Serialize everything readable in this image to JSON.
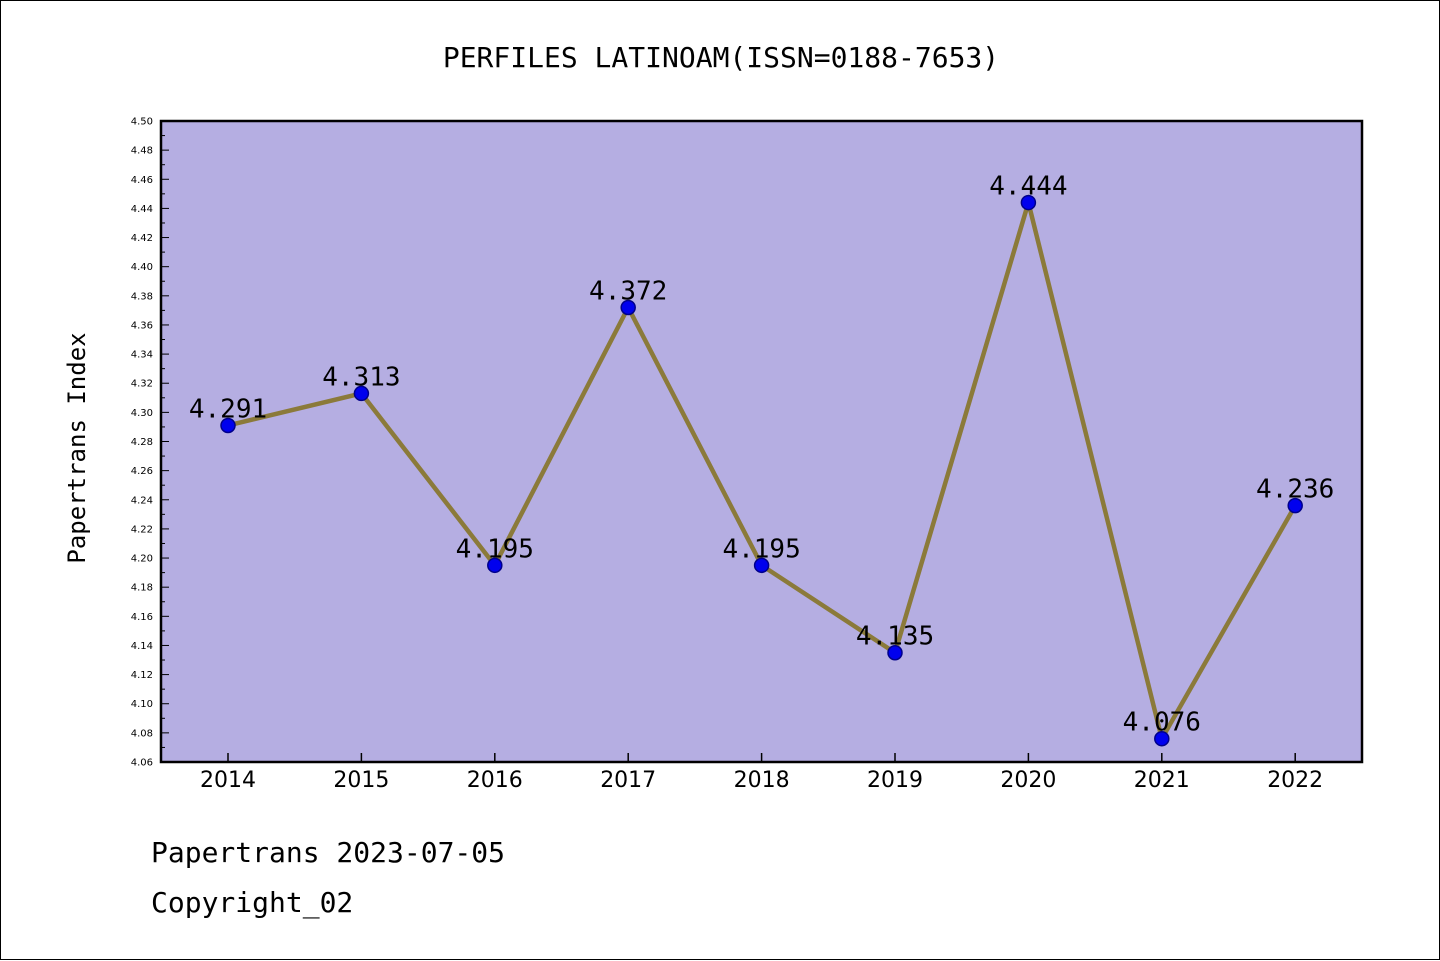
{
  "chart_data": {
    "type": "line",
    "title": "PERFILES LATINOAM(ISSN=0188-7653)",
    "xlabel": "",
    "ylabel": "Papertrans Index",
    "categories": [
      "2014",
      "2015",
      "2016",
      "2017",
      "2018",
      "2019",
      "2020",
      "2021",
      "2022"
    ],
    "series": [
      {
        "values": [
          4.291,
          4.313,
          4.195,
          4.372,
          4.195,
          4.135,
          4.444,
          4.076,
          4.236
        ],
        "labels": [
          "4.291",
          "4.313",
          "4.195",
          "4.372",
          "4.195",
          "4.135",
          "4.444",
          "4.076",
          "4.236"
        ]
      }
    ],
    "ylim": [
      4.06,
      4.5
    ],
    "yticks": [
      "4.06",
      "4.08",
      "4.10",
      "4.12",
      "4.14",
      "4.16",
      "4.18",
      "4.20",
      "4.22",
      "4.24",
      "4.26",
      "4.28",
      "4.30",
      "4.32",
      "4.34",
      "4.36",
      "4.38",
      "4.40",
      "4.42",
      "4.44",
      "4.46",
      "4.48",
      "4.50"
    ],
    "grid": false,
    "legend": "none",
    "colors": {
      "plot_background": "#b5aee2",
      "line": "#8b7a3a",
      "marker": "#0000ee",
      "marker_edge": "#00008b"
    }
  },
  "footer": {
    "date_line": "Papertrans 2023-07-05",
    "copyright_line": "Copyright_02"
  }
}
